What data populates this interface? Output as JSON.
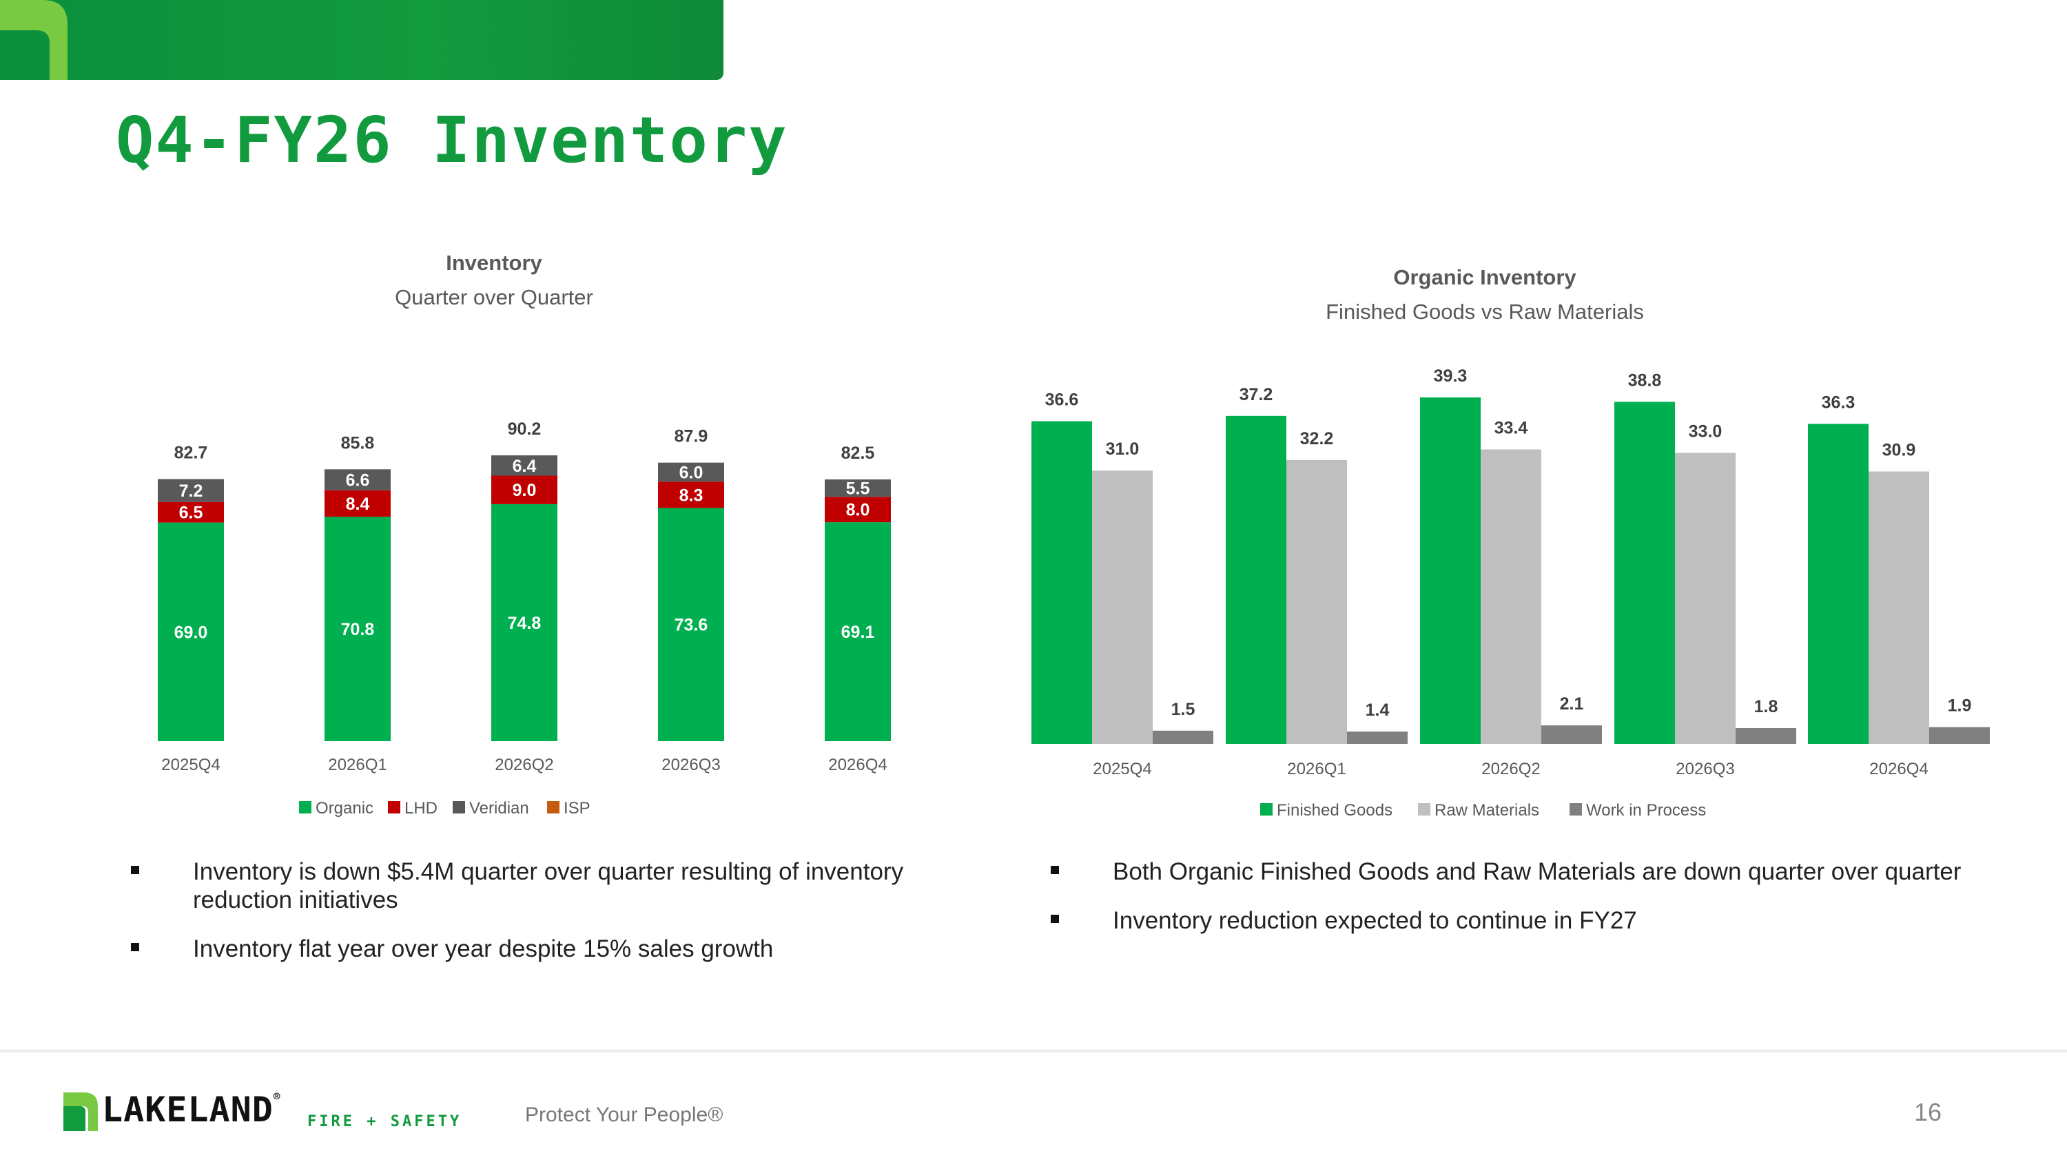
{
  "page": {
    "title": "Q4-FY26 Inventory",
    "number": "16",
    "tagline": "Protect Your People®",
    "brand": "LAKELAND",
    "brand_mark": "®",
    "brand_sub": "FIRE + SAFETY",
    "banner_icon": "leaf-icon"
  },
  "left_bullets": [
    "Inventory is down $5.4M quarter over quarter resulting of inventory reduction initiatives",
    "Inventory flat year over year despite 15% sales growth"
  ],
  "right_bullets": [
    "Both Organic Finished Goods and Raw Materials are down quarter over quarter",
    "Inventory reduction expected to continue in FY27"
  ],
  "chart_data": [
    {
      "type": "bar",
      "stacked": true,
      "title": "Inventory",
      "subtitle": "Quarter over Quarter",
      "categories": [
        "2025Q4",
        "2026Q1",
        "2026Q2",
        "2026Q3",
        "2026Q4"
      ],
      "series": [
        {
          "name": "Organic",
          "color": "#00b050",
          "values": [
            69.0,
            70.8,
            74.8,
            73.6,
            69.1
          ]
        },
        {
          "name": "LHD",
          "color": "#c00000",
          "values": [
            6.5,
            8.4,
            9.0,
            8.3,
            8.0
          ]
        },
        {
          "name": "Veridian",
          "color": "#595959",
          "values": [
            7.2,
            6.6,
            6.4,
            6.0,
            5.5
          ]
        },
        {
          "name": "ISP",
          "color": "#c55a11",
          "values": [
            0,
            0,
            0,
            0,
            0
          ]
        }
      ],
      "totals": [
        82.7,
        85.8,
        90.2,
        87.9,
        82.5
      ],
      "ylim": [
        0,
        100
      ],
      "grid": false,
      "legend": "bottom"
    },
    {
      "type": "bar",
      "stacked": false,
      "title": "Organic Inventory",
      "subtitle": "Finished Goods vs Raw Materials",
      "categories": [
        "2025Q4",
        "2026Q1",
        "2026Q2",
        "2026Q3",
        "2026Q4"
      ],
      "series": [
        {
          "name": "Finished Goods",
          "color": "#00b050",
          "values": [
            36.6,
            37.2,
            39.3,
            38.8,
            36.3
          ]
        },
        {
          "name": "Raw Materials",
          "color": "#bfbfbf",
          "values": [
            31.0,
            32.2,
            33.4,
            33.0,
            30.9
          ]
        },
        {
          "name": "Work in Process",
          "color": "#808080",
          "values": [
            1.5,
            1.4,
            2.1,
            1.8,
            1.9
          ]
        }
      ],
      "ylim": [
        0,
        42
      ],
      "grid": false,
      "legend": "bottom"
    }
  ]
}
